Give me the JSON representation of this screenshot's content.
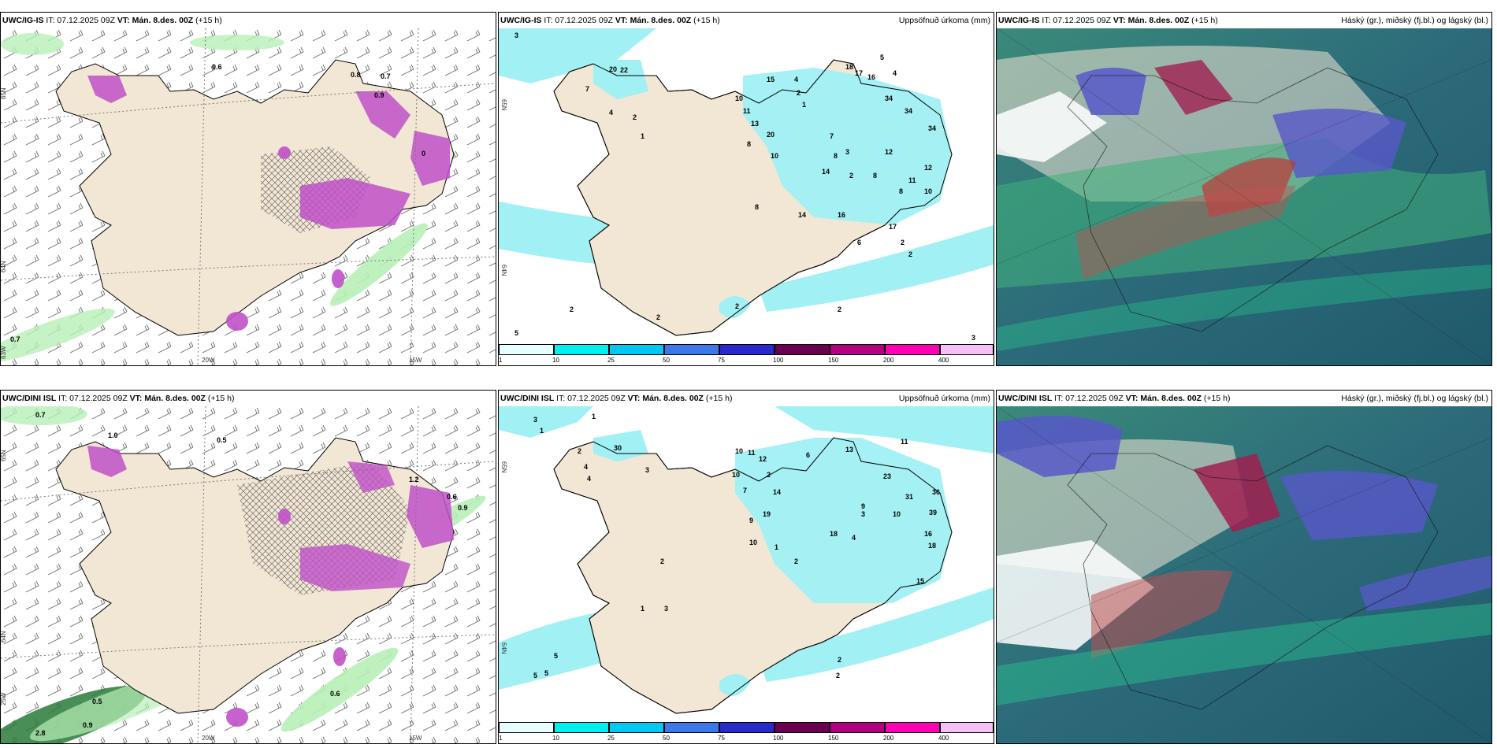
{
  "rows": [
    {
      "model": "UWC/IG-IS",
      "it": "IT: 07.12.2025 09Z",
      "vt_label": "VT:",
      "vt": "Mán. 8.des. 00Z",
      "lead": "(+15 h)",
      "wind_labels": [
        "0.6",
        "0.8",
        "0.7",
        "0.9",
        "0.7",
        "0"
      ],
      "wind_grid": {
        "lat_top": "65N",
        "lat_mid": "64N",
        "lat_side": "63W",
        "lon1": "20W",
        "lon2": "15W"
      },
      "precip_labels": [
        "3",
        "20",
        "22",
        "7",
        "4",
        "2",
        "1",
        "10",
        "11",
        "13",
        "8",
        "20",
        "10",
        "15",
        "4",
        "2",
        "1",
        "7",
        "3",
        "8",
        "14",
        "2",
        "18",
        "17",
        "16",
        "5",
        "4",
        "34",
        "34",
        "34",
        "12",
        "8",
        "12",
        "11",
        "8",
        "10",
        "14",
        "16",
        "6",
        "17",
        "2",
        "2",
        "8",
        "2",
        "2",
        "5",
        "2",
        "3",
        "2"
      ],
      "precip_grid": {
        "lat_top": "65N",
        "lat_mid": "64N"
      }
    },
    {
      "model": "UWC/DINI ISL",
      "it": "IT: 07.12.2025 09Z",
      "vt_label": "VT:",
      "vt": "Mán. 8.des. 00Z",
      "lead": "(+15 h)",
      "wind_labels": [
        "0.7",
        "1.0",
        "0.5",
        "1.2",
        "0.6",
        "0.9",
        "0.5",
        "0.6",
        "2.8",
        "0.9"
      ],
      "wind_grid": {
        "lat_top": "65N",
        "lat_mid": "64N",
        "lat_side": "25W",
        "lon1": "20W",
        "lon2": "15W"
      },
      "precip_labels": [
        "3",
        "1",
        "1",
        "2",
        "30",
        "4",
        "4",
        "3",
        "10",
        "11",
        "12",
        "6",
        "13",
        "11",
        "10",
        "7",
        "14",
        "2",
        "19",
        "9",
        "23",
        "31",
        "36",
        "39",
        "9",
        "10",
        "18",
        "4",
        "3",
        "16",
        "18",
        "15",
        "2",
        "10",
        "1",
        "2",
        "1",
        "3",
        "5",
        "5",
        "5",
        "2",
        "2"
      ],
      "precip_grid": {
        "lat_top": "65N",
        "lat_mid": "64N"
      }
    }
  ],
  "precip_title": "Uppsöfnuð úrkoma (mm)",
  "cloud_title": "Háský (gr.), miðský (fj.bl.) og lágský (bl.)",
  "colorbar": {
    "ticks": [
      "1",
      "10",
      "25",
      "50",
      "75",
      "100",
      "150",
      "200",
      "400"
    ],
    "colors": [
      "#e8ffff",
      "#00f0f0",
      "#00c8f0",
      "#3c78e8",
      "#2a2ac8",
      "#6a0050",
      "#b00080",
      "#ff00b4",
      "#f6c0f6"
    ]
  },
  "colors": {
    "land": "#f2e6d4",
    "snow_magenta": "#c050c8",
    "cyan_precip": "#a0f0f4",
    "green_wind": "#b8f0b8",
    "dark_green": "#2a7a3a",
    "cloud_base": "#2c6a7a"
  }
}
